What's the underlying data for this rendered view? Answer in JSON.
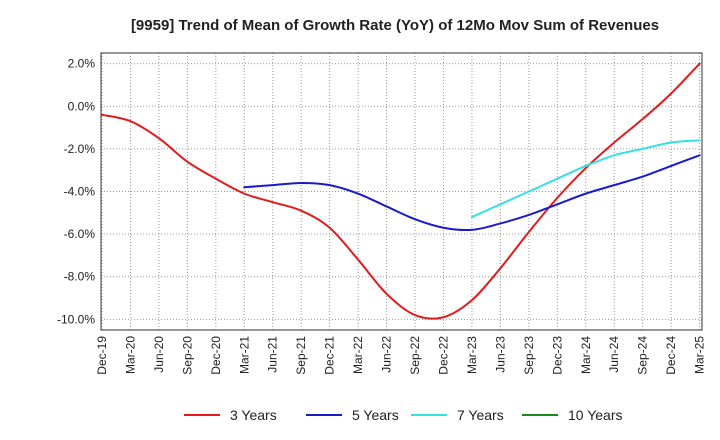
{
  "chart_data": {
    "type": "line",
    "title": "[9959]  Trend of Mean of Growth Rate (YoY) of 12Mo Mov Sum of Revenues",
    "xlabel": "",
    "ylabel": "",
    "ylim": [
      -10.5,
      2.5
    ],
    "yticks": [
      2.0,
      0.0,
      -2.0,
      -4.0,
      -6.0,
      -8.0,
      -10.0
    ],
    "ytick_labels": [
      "2.0%",
      "0.0%",
      "-2.0%",
      "-4.0%",
      "-6.0%",
      "-8.0%",
      "-10.0%"
    ],
    "x_categories": [
      "Dec-19",
      "Mar-20",
      "Jun-20",
      "Sep-20",
      "Dec-20",
      "Mar-21",
      "Jun-21",
      "Sep-21",
      "Dec-21",
      "Mar-22",
      "Jun-22",
      "Sep-22",
      "Dec-22",
      "Mar-23",
      "Jun-23",
      "Sep-23",
      "Dec-23",
      "Mar-24",
      "Jun-24",
      "Sep-24",
      "Dec-24",
      "Mar-25"
    ],
    "grid": true,
    "legend_position": "bottom",
    "series": [
      {
        "name": "3 Years",
        "color": "#e31a1c",
        "points": [
          [
            0,
            -0.4
          ],
          [
            1,
            -0.7
          ],
          [
            2,
            -1.5
          ],
          [
            3,
            -2.6
          ],
          [
            4,
            -3.4
          ],
          [
            5,
            -4.1
          ],
          [
            6,
            -4.5
          ],
          [
            7,
            -4.9
          ],
          [
            8,
            -5.7
          ],
          [
            9,
            -7.2
          ],
          [
            10,
            -8.8
          ],
          [
            11,
            -9.8
          ],
          [
            12,
            -9.9
          ],
          [
            13,
            -9.1
          ],
          [
            14,
            -7.6
          ],
          [
            15,
            -5.9
          ],
          [
            16,
            -4.3
          ],
          [
            17,
            -2.9
          ],
          [
            18,
            -1.7
          ],
          [
            19,
            -0.6
          ],
          [
            20,
            0.6
          ],
          [
            21,
            2.0
          ]
        ]
      },
      {
        "name": "5 Years",
        "color": "#1a1acd",
        "points": [
          [
            5,
            -3.8
          ],
          [
            6,
            -3.7
          ],
          [
            7,
            -3.6
          ],
          [
            8,
            -3.7
          ],
          [
            9,
            -4.1
          ],
          [
            10,
            -4.7
          ],
          [
            11,
            -5.3
          ],
          [
            12,
            -5.7
          ],
          [
            13,
            -5.8
          ],
          [
            14,
            -5.5
          ],
          [
            15,
            -5.1
          ],
          [
            16,
            -4.6
          ],
          [
            17,
            -4.1
          ],
          [
            18,
            -3.7
          ],
          [
            19,
            -3.3
          ],
          [
            20,
            -2.8
          ],
          [
            21,
            -2.3
          ]
        ]
      },
      {
        "name": "7 Years",
        "color": "#33e0e6",
        "points": [
          [
            13,
            -5.2
          ],
          [
            14,
            -4.6
          ],
          [
            15,
            -4.0
          ],
          [
            16,
            -3.4
          ],
          [
            17,
            -2.8
          ],
          [
            18,
            -2.3
          ],
          [
            19,
            -2.0
          ],
          [
            20,
            -1.7
          ],
          [
            21,
            -1.6
          ]
        ]
      },
      {
        "name": "10 Years",
        "color": "#1a8a1a",
        "points": []
      }
    ]
  }
}
